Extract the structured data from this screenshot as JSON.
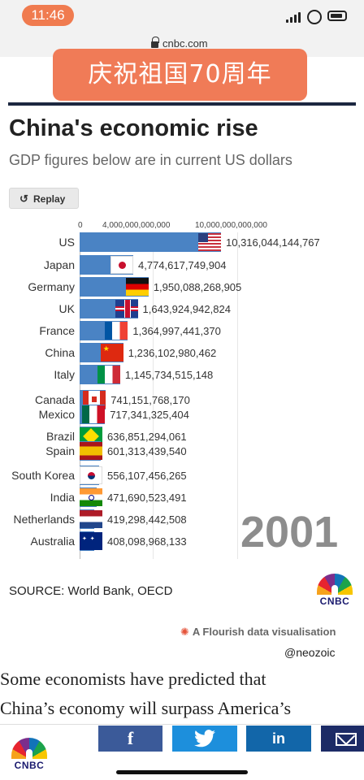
{
  "status_bar": {
    "time": "11:46"
  },
  "browser": {
    "domain": "cnbc.com"
  },
  "banner": {
    "text": "庆祝祖国70周年"
  },
  "header": {
    "title": "China's economic rise",
    "subtitle": "GDP figures below are in current US dollars"
  },
  "controls": {
    "replay_label": "Replay",
    "replay_icon": "↺"
  },
  "chart_data": {
    "type": "bar",
    "orientation": "horizontal",
    "title": "China's economic rise",
    "subtitle": "GDP figures below are in current US dollars",
    "year": "2001",
    "axis_ticks": [
      "0",
      "4,000,000,000,000",
      "10,000,000,000,000"
    ],
    "xlim": [
      0,
      10316044144767
    ],
    "categories": [
      "US",
      "Japan",
      "Germany",
      "UK",
      "France",
      "China",
      "Italy",
      "Canada",
      "Mexico",
      "Brazil",
      "Spain",
      "South Korea",
      "India",
      "Netherlands",
      "Australia"
    ],
    "values": [
      10316044144767,
      4774617749904,
      1950088268905,
      1643924942824,
      1364997441370,
      1236102980462,
      1145734515148,
      741151768170,
      717341325404,
      636851294061,
      601313439540,
      556107456265,
      471690523491,
      419298442508,
      408098968133
    ],
    "value_labels": [
      "10,316,044,144,767",
      "4,774,617,749,904",
      "1,950,088,268,905",
      "1,643,924,942,824",
      "1,364,997,441,370",
      "1,236,102,980,462",
      "1,145,734,515,148",
      "741,151,768,170",
      "717,341,325,404",
      "636,851,294,061",
      "601,313,439,540",
      "556,107,456,265",
      "471,690,523,491",
      "419,298,442,508",
      "408,098,968,133"
    ],
    "flags": [
      "us",
      "jp",
      "de",
      "uk",
      "fr",
      "cn",
      "it",
      "ca",
      "mx",
      "br",
      "es",
      "kr",
      "in",
      "nl",
      "au"
    ],
    "bar_color": "#4a83c4",
    "legend": "none"
  },
  "source": {
    "text": "SOURCE: World Bank, OECD"
  },
  "branding": {
    "cnbc_wordmark": "CNBC"
  },
  "flourish": {
    "icon": "✺",
    "text": "A Flourish data visualisation"
  },
  "watermark": {
    "handle": "@neozoic"
  },
  "article": {
    "line1": "Some economists have predicted that",
    "line2": "China’s economy will surpass America’s"
  },
  "share": {
    "facebook": "f",
    "linkedin": "in",
    "twitter_icon": "twitter-bird-icon"
  },
  "colors": {
    "accent": "#f07b57",
    "navy": "#1c2740"
  }
}
